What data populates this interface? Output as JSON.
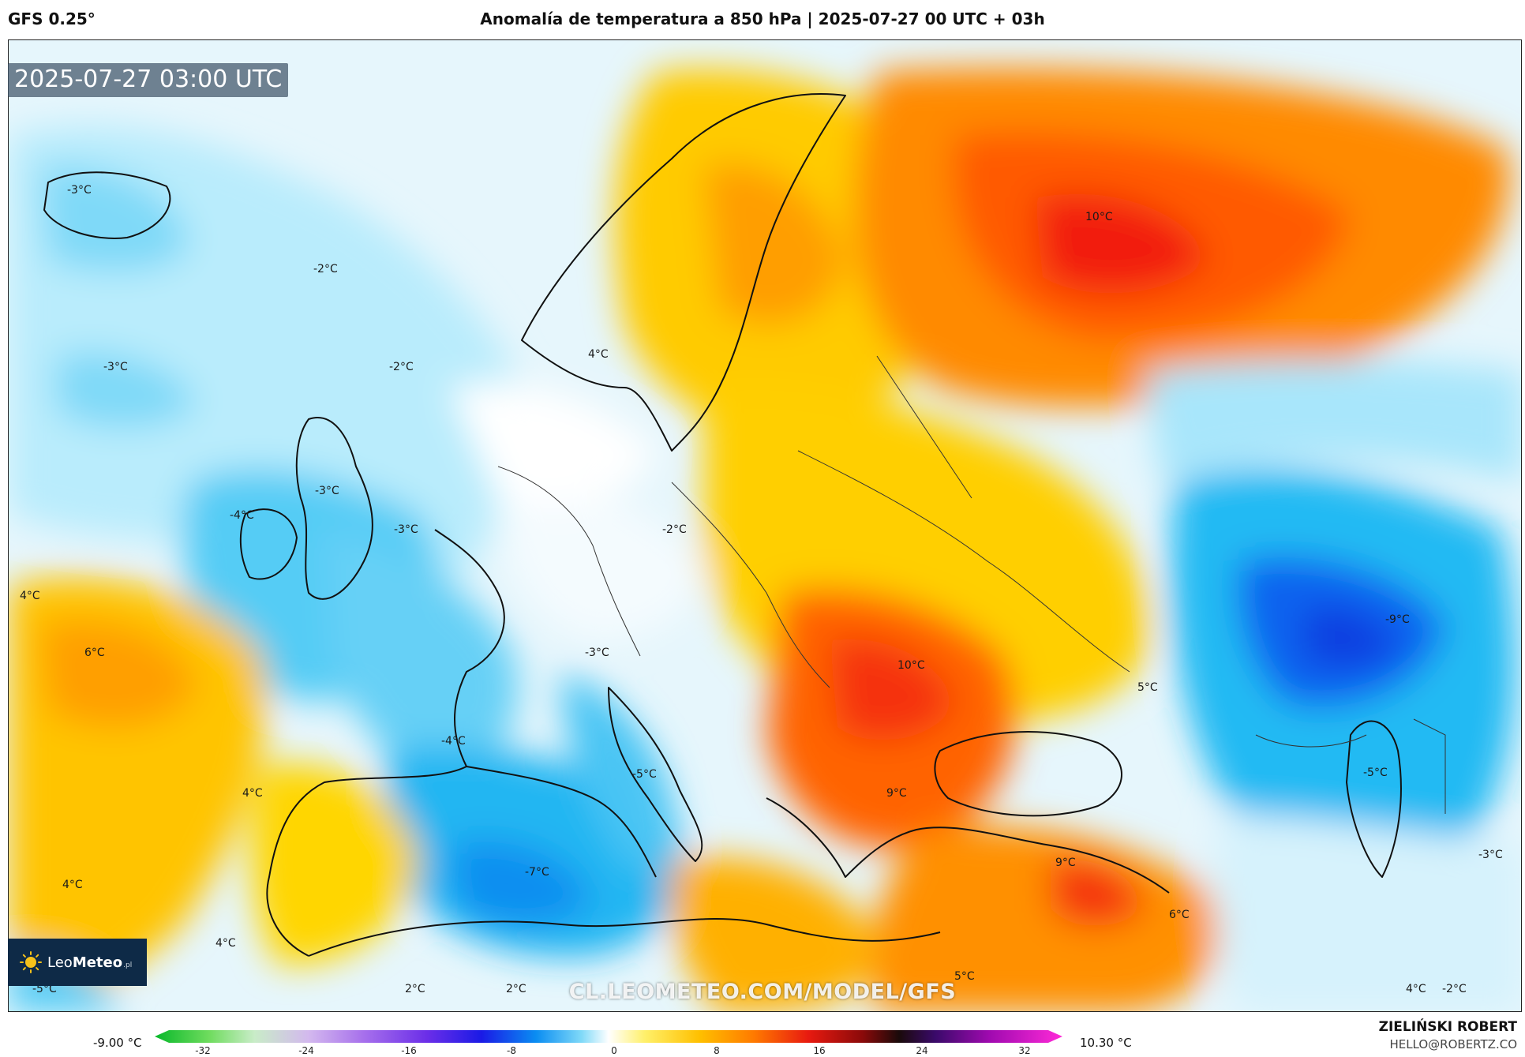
{
  "header": {
    "model": "GFS 0.25°",
    "title": "Anomalía de temperatura a 850 hPa | 2025-07-27 00 UTC + 03h"
  },
  "map": {
    "valid_time": "2025-07-27 03:00 UTC",
    "watermark": "CL.LEOMETEO.COM/MODEL/GFS",
    "logo": {
      "name": "LeoMeteo",
      "prefix": "Leo",
      "suffix_strong": "Meteo",
      "tld": ".pl"
    },
    "labels": [
      "-3°C",
      "-2°C",
      "-3°C",
      "-2°C",
      "4°C",
      "10°C",
      "-3°C",
      "-4°C",
      "-3°C",
      "-2°C",
      "4°C",
      "6°C",
      "-3°C",
      "10°C",
      "5°C",
      "-9°C",
      "-4°C",
      "-5°C",
      "4°C",
      "9°C",
      "-5°C",
      "4°C",
      "-7°C",
      "9°C",
      "-3°C",
      "6°C",
      "4°C",
      "-5°C",
      "2°C",
      "2°C",
      "5°C",
      "4°C",
      "-2°C"
    ]
  },
  "colorbar": {
    "min_label": "-9.00 °C",
    "max_label": "10.30 °C",
    "ticks": [
      "-32",
      "-24",
      "-16",
      "-8",
      "0",
      "8",
      "16",
      "24",
      "32"
    ]
  },
  "footer": {
    "author": "ZIELIŃSKI ROBERT",
    "email": "HELLO@ROBERTZ.CO"
  },
  "colors": {
    "cold_deep": "#0a5cf0",
    "cold": "#00bff5",
    "cool": "#a8e6fb",
    "neutral": "#ffffff",
    "warm_light": "#fff3a0",
    "warm": "#ffd000",
    "hot": "#ff9000",
    "very_hot": "#ff4a00",
    "extreme": "#f21010"
  }
}
